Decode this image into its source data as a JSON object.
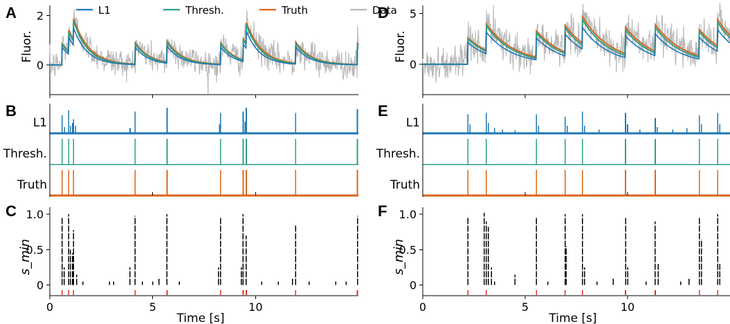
{
  "colors": {
    "l1": "#1f77b4",
    "thresh": "#2ca089",
    "truth": "#d9661a",
    "data": "#b8b8b8",
    "spike_marker": "#e0301e",
    "ink": "#000000"
  },
  "legend": [
    {
      "label": "L1",
      "color": "#1f77b4"
    },
    {
      "label": "Thresh.",
      "color": "#2ca089"
    },
    {
      "label": "Truth",
      "color": "#d9661a"
    },
    {
      "label": "Data",
      "color": "#b8b8b8"
    }
  ],
  "chart_data": [
    {
      "panel": "A",
      "type": "line",
      "ylabel": "Fluor.",
      "xlim": [
        0,
        15
      ],
      "ylim": [
        -1.2,
        2.4
      ],
      "yticks": [
        "0",
        "2"
      ],
      "ytick_values": [
        0,
        2
      ],
      "tau": 0.75,
      "truth_spikes": [
        0.6,
        0.92,
        1.15,
        4.15,
        5.7,
        8.3,
        9.4,
        9.55,
        11.95,
        14.95
      ],
      "spike_amp": 0.85,
      "noise_sd": 0.3
    },
    {
      "panel": "B",
      "type": "bar",
      "rows": [
        {
          "label": "L1",
          "series": "l1",
          "spikes": [
            [
              0.6,
              0.7
            ],
            [
              0.72,
              0.25
            ],
            [
              0.92,
              0.9
            ],
            [
              1.0,
              0.3
            ],
            [
              1.1,
              0.4
            ],
            [
              1.15,
              0.55
            ],
            [
              1.25,
              0.3
            ],
            [
              3.9,
              0.2
            ],
            [
              4.15,
              0.85
            ],
            [
              5.7,
              1.0
            ],
            [
              8.25,
              0.35
            ],
            [
              8.3,
              0.8
            ],
            [
              9.4,
              0.85
            ],
            [
              9.5,
              0.45
            ],
            [
              9.55,
              1.0
            ],
            [
              11.95,
              0.8
            ],
            [
              14.95,
              0.95
            ]
          ]
        },
        {
          "label": "Thresh.",
          "series": "thresh",
          "spikes": [
            [
              0.6,
              1
            ],
            [
              0.92,
              1
            ],
            [
              1.15,
              1
            ],
            [
              4.15,
              1
            ],
            [
              5.7,
              1
            ],
            [
              8.3,
              1
            ],
            [
              9.4,
              1
            ],
            [
              9.55,
              1
            ],
            [
              11.95,
              1
            ],
            [
              14.95,
              1
            ]
          ]
        },
        {
          "label": "Truth",
          "series": "truth",
          "spikes": [
            [
              0.6,
              1
            ],
            [
              0.92,
              1
            ],
            [
              1.15,
              1
            ],
            [
              4.15,
              1
            ],
            [
              5.7,
              1
            ],
            [
              8.3,
              1
            ],
            [
              9.4,
              1
            ],
            [
              9.55,
              1
            ],
            [
              11.95,
              1
            ],
            [
              14.95,
              1
            ]
          ]
        }
      ]
    },
    {
      "panel": "C",
      "type": "scatter",
      "ylabel": "s_min",
      "xlim": [
        0,
        15
      ],
      "ylim": [
        -0.15,
        1.1
      ],
      "yticks": [
        "0",
        "0.5",
        "1.0"
      ],
      "ytick_values": [
        0,
        0.5,
        1.0
      ],
      "xlabel": "Time [s]",
      "xticks": [
        "0",
        "5",
        "10"
      ],
      "xtick_values": [
        0,
        5,
        10
      ],
      "true_spikes": [
        0.6,
        0.92,
        1.15,
        4.15,
        5.7,
        8.3,
        9.4,
        9.55,
        11.95,
        14.95
      ],
      "events": [
        [
          0.6,
          0,
          0.95
        ],
        [
          0.92,
          0,
          1.0
        ],
        [
          1.15,
          0,
          0.78
        ],
        [
          4.15,
          0,
          0.98
        ],
        [
          5.7,
          0,
          1.0
        ],
        [
          8.3,
          0,
          0.95
        ],
        [
          9.4,
          0,
          1.0
        ],
        [
          9.55,
          0,
          0.7
        ],
        [
          11.95,
          0,
          0.85
        ],
        [
          14.95,
          0,
          0.98
        ],
        [
          0.7,
          0,
          0.25
        ],
        [
          1.0,
          0,
          0.5
        ],
        [
          1.1,
          0,
          0.45
        ],
        [
          1.3,
          0,
          0.15
        ],
        [
          1.6,
          0,
          0.05
        ],
        [
          2.9,
          0,
          0.05
        ],
        [
          3.1,
          0,
          0.05
        ],
        [
          3.9,
          0,
          0.25
        ],
        [
          4.5,
          0,
          0.05
        ],
        [
          5.0,
          0,
          0.05
        ],
        [
          5.3,
          0,
          0.1
        ],
        [
          6.3,
          0,
          0.05
        ],
        [
          8.2,
          0,
          0.25
        ],
        [
          9.3,
          0,
          0.25
        ],
        [
          10.3,
          0,
          0.05
        ],
        [
          11.1,
          0,
          0.05
        ],
        [
          11.8,
          0,
          0.1
        ],
        [
          12.6,
          0,
          0.05
        ],
        [
          13.9,
          0,
          0.05
        ],
        [
          14.4,
          0,
          0.05
        ]
      ]
    },
    {
      "panel": "D",
      "type": "line",
      "ylabel": "Fluor.",
      "xlim": [
        0,
        15
      ],
      "ylim": [
        -3.0,
        5.8
      ],
      "yticks": [
        "0",
        "5"
      ],
      "ytick_values": [
        0,
        5
      ],
      "tau": 1.4,
      "truth_spikes": [
        2.2,
        3.1,
        5.55,
        6.95,
        7.8,
        9.9,
        11.35,
        13.5,
        14.4
      ],
      "spike_amp": 2.6,
      "noise_sd": 0.9
    },
    {
      "panel": "E",
      "type": "bar",
      "rows": [
        {
          "label": "L1",
          "series": "l1",
          "spikes": [
            [
              2.2,
              0.75
            ],
            [
              2.3,
              0.35
            ],
            [
              3.1,
              0.8
            ],
            [
              3.2,
              0.4
            ],
            [
              3.5,
              0.2
            ],
            [
              3.9,
              0.15
            ],
            [
              4.5,
              0.12
            ],
            [
              5.55,
              0.75
            ],
            [
              5.65,
              0.3
            ],
            [
              6.95,
              0.65
            ],
            [
              7.05,
              0.3
            ],
            [
              7.8,
              0.85
            ],
            [
              7.9,
              0.3
            ],
            [
              8.6,
              0.15
            ],
            [
              9.9,
              0.8
            ],
            [
              10.0,
              0.35
            ],
            [
              10.6,
              0.15
            ],
            [
              11.35,
              0.6
            ],
            [
              11.45,
              0.25
            ],
            [
              12.2,
              0.15
            ],
            [
              12.9,
              0.2
            ],
            [
              13.5,
              0.7
            ],
            [
              13.6,
              0.35
            ],
            [
              14.4,
              0.8
            ],
            [
              14.5,
              0.35
            ]
          ]
        },
        {
          "label": "Thresh.",
          "series": "thresh",
          "spikes": [
            [
              2.2,
              1
            ],
            [
              3.1,
              1
            ],
            [
              5.55,
              1
            ],
            [
              6.95,
              1
            ],
            [
              7.8,
              1
            ],
            [
              9.9,
              1
            ],
            [
              11.35,
              1
            ],
            [
              13.5,
              1
            ],
            [
              14.4,
              1
            ]
          ]
        },
        {
          "label": "Truth",
          "series": "truth",
          "spikes": [
            [
              2.2,
              1
            ],
            [
              3.1,
              1
            ],
            [
              5.55,
              1
            ],
            [
              6.95,
              1
            ],
            [
              7.8,
              1
            ],
            [
              9.9,
              1
            ],
            [
              11.35,
              1
            ],
            [
              13.5,
              1
            ],
            [
              14.4,
              1
            ]
          ]
        }
      ]
    },
    {
      "panel": "F",
      "type": "scatter",
      "ylabel": "s_min",
      "xlim": [
        0,
        15
      ],
      "ylim": [
        -0.15,
        1.1
      ],
      "yticks": [
        "0",
        "0.5",
        "1.0"
      ],
      "ytick_values": [
        0,
        0.5,
        1.0
      ],
      "xlabel": "Time [s]",
      "xticks": [
        "0",
        "5",
        "10"
      ],
      "xtick_values": [
        0,
        5,
        10
      ],
      "true_spikes": [
        2.2,
        3.1,
        5.55,
        6.95,
        7.8,
        9.9,
        11.35,
        13.5,
        14.4
      ],
      "events": [
        [
          2.2,
          0,
          0.95
        ],
        [
          3.1,
          0,
          0.9
        ],
        [
          5.55,
          0,
          0.95
        ],
        [
          6.95,
          0,
          1.0
        ],
        [
          7.8,
          0,
          1.0
        ],
        [
          9.9,
          0,
          0.95
        ],
        [
          11.35,
          0,
          0.9
        ],
        [
          13.5,
          0,
          0.95
        ],
        [
          14.4,
          0,
          1.0
        ],
        [
          3.0,
          0,
          1.02
        ],
        [
          3.2,
          0,
          0.82
        ],
        [
          3.35,
          0,
          0.25
        ],
        [
          3.5,
          0,
          0.05
        ],
        [
          4.5,
          0,
          0.15
        ],
        [
          6.1,
          0,
          0.05
        ],
        [
          7.0,
          0,
          0.55
        ],
        [
          7.9,
          0,
          0.25
        ],
        [
          8.5,
          0,
          0.05
        ],
        [
          9.3,
          0,
          0.1
        ],
        [
          10.0,
          0,
          0.25
        ],
        [
          10.9,
          0,
          0.05
        ],
        [
          11.5,
          0,
          0.3
        ],
        [
          12.6,
          0,
          0.05
        ],
        [
          13.0,
          0,
          0.1
        ],
        [
          13.6,
          0,
          0.65
        ],
        [
          14.5,
          0,
          0.3
        ]
      ]
    }
  ]
}
